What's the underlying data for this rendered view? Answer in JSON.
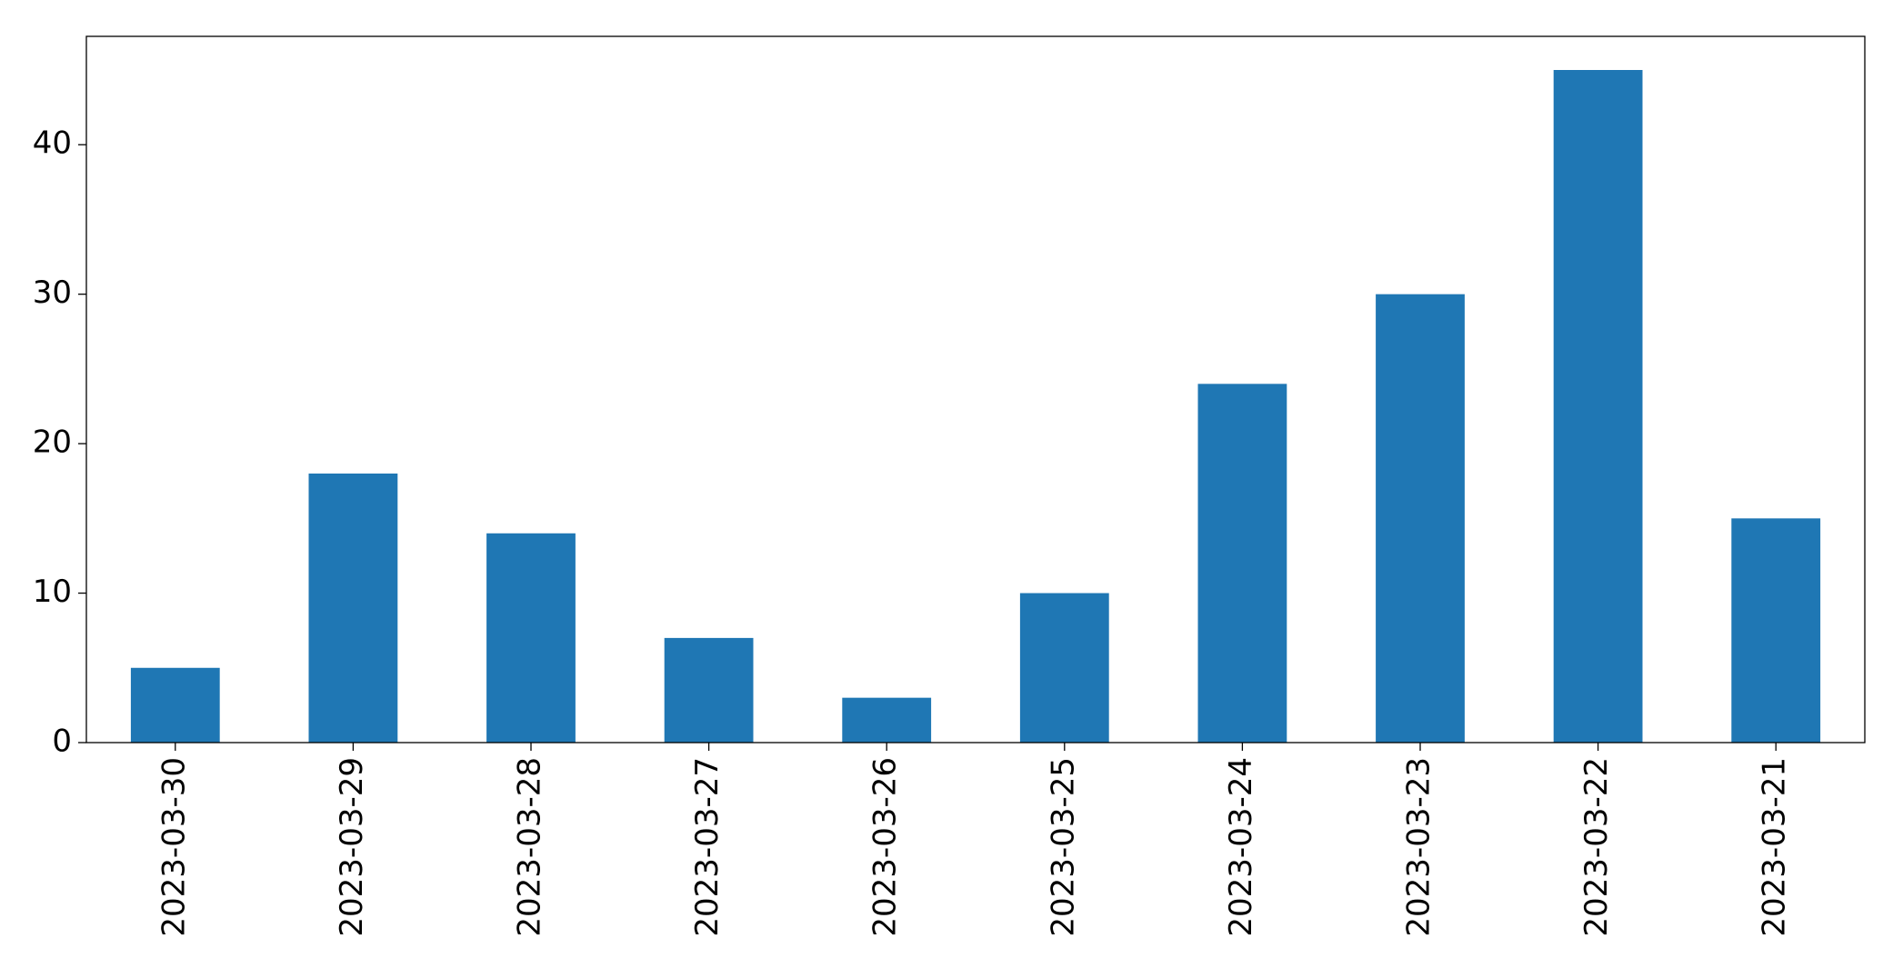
{
  "chart_data": {
    "type": "bar",
    "categories": [
      "2023-03-30",
      "2023-03-29",
      "2023-03-28",
      "2023-03-27",
      "2023-03-26",
      "2023-03-25",
      "2023-03-24",
      "2023-03-23",
      "2023-03-22",
      "2023-03-21"
    ],
    "values": [
      5,
      18,
      14,
      7,
      3,
      10,
      24,
      30,
      45,
      15
    ],
    "color": "#1f77b4",
    "ylim": [
      0,
      47.25
    ],
    "yticks": [
      0,
      10,
      20,
      30,
      40
    ],
    "grid": false
  }
}
